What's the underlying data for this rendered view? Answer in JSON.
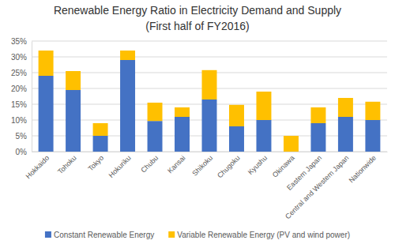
{
  "chart_data": {
    "type": "bar",
    "stacked": true,
    "title": "Renewable Energy Ratio in Electricity Demand and Supply",
    "subtitle": "(First half of FY2016)",
    "categories": [
      "Hokkaido",
      "Tohoku",
      "Tokyo",
      "Hokuriku",
      "Chubu",
      "Kansai",
      "Shikoku",
      "Chugoku",
      "Kyushu",
      "Okinawa",
      "Eastern Japan",
      "Central and Western Japan",
      "Nationwide"
    ],
    "series": [
      {
        "name": "Constant Renewable Energy",
        "color": "#4472c4",
        "values": [
          24,
          19.5,
          5,
          29,
          9.7,
          11,
          16.5,
          8,
          10,
          0,
          9,
          11,
          10
        ]
      },
      {
        "name": "Variable Renewable Energy (PV and wind power)",
        "color": "#ffc000",
        "values": [
          8,
          6,
          4,
          3,
          5.8,
          3,
          9.3,
          6.8,
          9,
          5,
          5,
          6,
          5.8
        ]
      }
    ],
    "ylim": [
      0,
      35
    ],
    "yticks": [
      {
        "value": 0,
        "label": "0%"
      },
      {
        "value": 5,
        "label": "5%"
      },
      {
        "value": 10,
        "label": "10%"
      },
      {
        "value": 15,
        "label": "15%"
      },
      {
        "value": 20,
        "label": "20%"
      },
      {
        "value": 25,
        "label": "25%"
      },
      {
        "value": 30,
        "label": "30%"
      },
      {
        "value": 35,
        "label": "35%"
      }
    ],
    "grid": true,
    "legend": "bottom"
  }
}
